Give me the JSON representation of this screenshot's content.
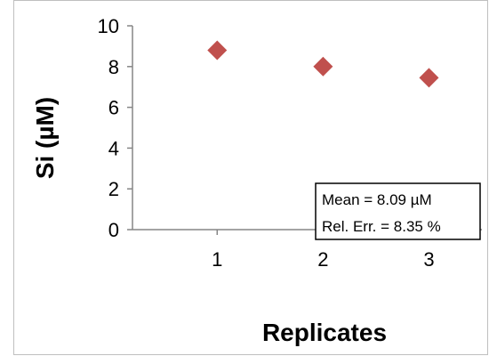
{
  "chart_data": {
    "type": "scatter",
    "title": "",
    "xlabel": "Replicates",
    "ylabel": "Si (µM)",
    "x": [
      1,
      2,
      3
    ],
    "y": [
      8.8,
      8.0,
      7.45
    ],
    "xticks": [
      "1",
      "2",
      "3"
    ],
    "yticks": [
      "0",
      "2",
      "4",
      "6",
      "8",
      "10"
    ],
    "xlim": [
      0.2,
      3.5
    ],
    "ylim": [
      0,
      10
    ],
    "marker": "diamond",
    "marker_color": "#c0504d",
    "grid": false,
    "legend": "none",
    "annotation": {
      "line1": "Mean = 8.09 µM",
      "line2": "Rel. Err. = 8.35 %"
    }
  }
}
